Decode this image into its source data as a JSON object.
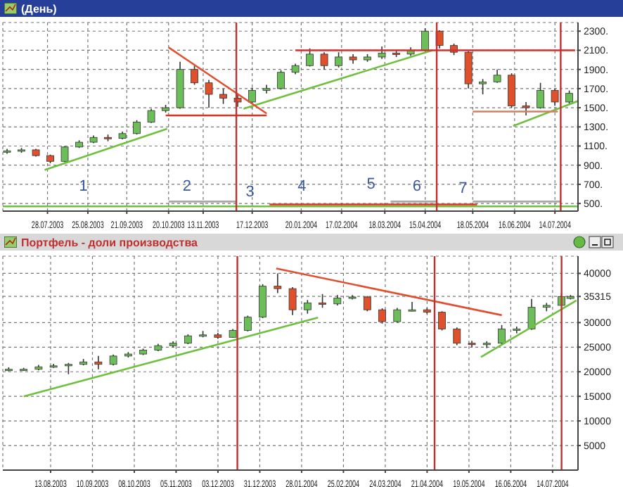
{
  "chart_data": [
    {
      "type": "candlestick",
      "title": "(День)",
      "x": [
        "2003-06-30",
        "2003-07-10",
        "2003-07-20",
        "2003-07-30",
        "2003-08-09",
        "2003-08-19",
        "2003-08-29",
        "2003-09-08",
        "2003-09-18",
        "2003-09-28",
        "2003-10-08",
        "2003-10-18",
        "2003-10-28",
        "2003-11-07",
        "2003-11-17",
        "2003-11-27",
        "2003-12-07",
        "2003-12-17",
        "2003-12-27",
        "2004-01-06",
        "2004-01-16",
        "2004-01-26",
        "2004-02-05",
        "2004-02-15",
        "2004-02-25",
        "2004-03-06",
        "2004-03-16",
        "2004-03-26",
        "2004-04-05",
        "2004-04-15",
        "2004-04-25",
        "2004-05-05",
        "2004-05-15",
        "2004-05-25",
        "2004-06-04",
        "2004-06-14",
        "2004-06-24",
        "2004-07-04",
        "2004-07-14",
        "2004-07-24"
      ],
      "ohlc": [
        [
          1040,
          1070,
          1020,
          1050
        ],
        [
          1050,
          1080,
          1030,
          1060
        ],
        [
          1060,
          1070,
          990,
          1000
        ],
        [
          1000,
          1010,
          920,
          940
        ],
        [
          940,
          1100,
          930,
          1090
        ],
        [
          1090,
          1160,
          1080,
          1140
        ],
        [
          1140,
          1210,
          1130,
          1190
        ],
        [
          1190,
          1220,
          1150,
          1180
        ],
        [
          1180,
          1250,
          1170,
          1230
        ],
        [
          1230,
          1370,
          1220,
          1350
        ],
        [
          1350,
          1490,
          1340,
          1470
        ],
        [
          1470,
          1530,
          1450,
          1500
        ],
        [
          1500,
          1980,
          1490,
          1900
        ],
        [
          1900,
          1940,
          1740,
          1760
        ],
        [
          1760,
          1790,
          1500,
          1640
        ],
        [
          1640,
          1700,
          1540,
          1600
        ],
        [
          1600,
          1640,
          1510,
          1560
        ],
        [
          1560,
          1710,
          1550,
          1680
        ],
        [
          1680,
          1740,
          1650,
          1700
        ],
        [
          1700,
          1890,
          1690,
          1870
        ],
        [
          1870,
          1960,
          1850,
          1940
        ],
        [
          1940,
          2120,
          1930,
          2060
        ],
        [
          2060,
          2080,
          1900,
          1940
        ],
        [
          1940,
          2080,
          1920,
          2030
        ],
        [
          2030,
          2060,
          1960,
          2000
        ],
        [
          2000,
          2060,
          1980,
          2030
        ],
        [
          2030,
          2140,
          2010,
          2070
        ],
        [
          2070,
          2100,
          2030,
          2060
        ],
        [
          2060,
          2130,
          2040,
          2100
        ],
        [
          2100,
          2330,
          2090,
          2300
        ],
        [
          2300,
          2310,
          2120,
          2150
        ],
        [
          2150,
          2170,
          2050,
          2080
        ],
        [
          2080,
          2090,
          1700,
          1750
        ],
        [
          1750,
          1800,
          1640,
          1770
        ],
        [
          1770,
          1900,
          1760,
          1840
        ],
        [
          1840,
          1860,
          1500,
          1520
        ],
        [
          1520,
          1560,
          1420,
          1500
        ],
        [
          1500,
          1760,
          1490,
          1680
        ],
        [
          1680,
          1700,
          1520,
          1560
        ],
        [
          1560,
          1680,
          1540,
          1650
        ]
      ],
      "xlim": [
        "2003-06-27",
        "2004-07-30"
      ],
      "ylim": [
        420,
        2390
      ],
      "xticks": [
        {
          "value": "2003-07-28",
          "label": "28.07.2003"
        },
        {
          "value": "2003-08-25",
          "label": "25.08.2003"
        },
        {
          "value": "2003-09-21",
          "label": "21.09.2003"
        },
        {
          "value": "2003-10-20",
          "label": "20.10.2003"
        },
        {
          "value": "2003-11-13",
          "label": "13.11.2003"
        },
        {
          "value": "2003-12-17",
          "label": "17.12.2003"
        },
        {
          "value": "2004-01-20",
          "label": "20.01.2004"
        },
        {
          "value": "2004-02-17",
          "label": "17.02.2004"
        },
        {
          "value": "2004-03-18",
          "label": "18.03.2004"
        },
        {
          "value": "2004-04-15",
          "label": "15.04.2004"
        },
        {
          "value": "2004-05-18",
          "label": "18.05.2004"
        },
        {
          "value": "2004-06-16",
          "label": "16.06.2004"
        },
        {
          "value": "2004-07-14",
          "label": "14.07.2004"
        }
      ],
      "yticks": [
        {
          "value": 500,
          "label": "500."
        },
        {
          "value": 700,
          "label": "700."
        },
        {
          "value": 900,
          "label": "900."
        },
        {
          "value": 1100,
          "label": "1100."
        },
        {
          "value": 1300,
          "label": "1300."
        },
        {
          "value": 1500,
          "label": "1500."
        },
        {
          "value": 1700,
          "label": "1700."
        },
        {
          "value": 1900,
          "label": "1900."
        },
        {
          "value": 2100,
          "label": "2100."
        },
        {
          "value": 2300,
          "label": "2300."
        }
      ],
      "grid": true,
      "series": [
        {
          "type": "line",
          "color": "#70c040",
          "x": [
            "2003-07-26",
            "2003-10-19"
          ],
          "values": [
            850,
            1280
          ]
        },
        {
          "type": "line",
          "color": "#70c040",
          "x": [
            "2003-12-11",
            "2004-04-20"
          ],
          "values": [
            1490,
            2100
          ]
        },
        {
          "type": "line",
          "color": "#70c040",
          "x": [
            "2004-06-15",
            "2004-07-30"
          ],
          "values": [
            1310,
            1570
          ]
        },
        {
          "type": "line",
          "color": "#e05030",
          "x": [
            "2003-10-20",
            "2003-12-27"
          ],
          "values": [
            2130,
            1440
          ]
        },
        {
          "type": "line",
          "color": "#e03020",
          "x": [
            "2003-10-18",
            "2003-12-27"
          ],
          "values": [
            1420,
            1420
          ]
        },
        {
          "type": "line",
          "color": "#d03030",
          "x": [
            "2004-01-16",
            "2004-07-28"
          ],
          "values": [
            2100,
            2100
          ]
        },
        {
          "type": "line",
          "color": "#d08060",
          "x": [
            "2004-05-18",
            "2004-07-16"
          ],
          "values": [
            1460,
            1460
          ]
        },
        {
          "type": "line",
          "color": "#70c040",
          "x": [
            "2003-06-27",
            "2004-07-30"
          ],
          "values": [
            470,
            470
          ]
        },
        {
          "type": "line",
          "color": "#a8a8a8",
          "x": [
            "2003-10-20",
            "2003-12-06"
          ],
          "values": [
            520,
            520
          ]
        },
        {
          "type": "line",
          "color": "#e03020",
          "x": [
            "2003-12-29",
            "2004-05-21"
          ],
          "values": [
            490,
            490
          ]
        },
        {
          "type": "line",
          "color": "#a8a8a8",
          "x": [
            "2004-03-22",
            "2004-04-23"
          ],
          "values": [
            520,
            520
          ]
        },
        {
          "type": "line",
          "color": "#a8a8a8",
          "x": [
            "2004-05-18",
            "2004-07-18"
          ],
          "values": [
            520,
            520
          ]
        }
      ],
      "ref_lines": [
        {
          "axis": "x",
          "value": "2003-12-06",
          "color": "#c03030"
        },
        {
          "axis": "x",
          "value": "2004-04-23",
          "color": "#c03030"
        },
        {
          "axis": "x",
          "value": "2004-07-18",
          "color": "#c03030"
        }
      ],
      "annotations": [
        "1",
        "2",
        "3",
        "4",
        "5",
        "6",
        "7"
      ]
    },
    {
      "type": "candlestick",
      "title": "Портфель - доли производства",
      "x": [
        "2003-07-16",
        "2003-07-26",
        "2003-08-05",
        "2003-08-15",
        "2003-08-25",
        "2003-09-04",
        "2003-09-14",
        "2003-09-24",
        "2003-10-04",
        "2003-10-14",
        "2003-10-24",
        "2003-11-03",
        "2003-11-13",
        "2003-11-23",
        "2003-12-03",
        "2003-12-13",
        "2003-12-23",
        "2004-01-02",
        "2004-01-12",
        "2004-01-22",
        "2004-02-01",
        "2004-02-11",
        "2004-02-21",
        "2004-03-02",
        "2004-03-12",
        "2004-03-22",
        "2004-04-01",
        "2004-04-11",
        "2004-04-21",
        "2004-05-01",
        "2004-05-11",
        "2004-05-21",
        "2004-05-31",
        "2004-06-10",
        "2004-06-20",
        "2004-06-30",
        "2004-07-10",
        "2004-07-20",
        "2004-07-26"
      ],
      "ohlc": [
        [
          20300,
          20900,
          20100,
          20500
        ],
        [
          20500,
          20800,
          20200,
          20500
        ],
        [
          20500,
          21400,
          20300,
          21000
        ],
        [
          21000,
          21600,
          20800,
          21200
        ],
        [
          21200,
          21800,
          19500,
          21500
        ],
        [
          21500,
          22600,
          21300,
          22000
        ],
        [
          22000,
          23200,
          20500,
          21500
        ],
        [
          21500,
          23500,
          21300,
          23200
        ],
        [
          23200,
          24000,
          22900,
          23600
        ],
        [
          23600,
          24700,
          23400,
          24400
        ],
        [
          24400,
          25700,
          24200,
          25300
        ],
        [
          25300,
          26200,
          25000,
          25800
        ],
        [
          25800,
          27600,
          25600,
          27300
        ],
        [
          27300,
          28300,
          27000,
          27500
        ],
        [
          27500,
          27900,
          26700,
          27000
        ],
        [
          27000,
          28700,
          26900,
          28400
        ],
        [
          28400,
          31400,
          28200,
          31100
        ],
        [
          31100,
          37800,
          30900,
          37400
        ],
        [
          37400,
          40000,
          36000,
          36900
        ],
        [
          36900,
          37200,
          31500,
          32600
        ],
        [
          32600,
          34600,
          31800,
          34000
        ],
        [
          34000,
          35800,
          33000,
          33800
        ],
        [
          33800,
          35600,
          33500,
          35000
        ],
        [
          35000,
          35600,
          34700,
          35200
        ],
        [
          35200,
          35400,
          32300,
          32600
        ],
        [
          32600,
          32900,
          29800,
          30200
        ],
        [
          30200,
          33000,
          30000,
          32600
        ],
        [
          32600,
          34200,
          32300,
          32600
        ],
        [
          32600,
          33000,
          31800,
          32100
        ],
        [
          32100,
          32300,
          28400,
          28700
        ],
        [
          28700,
          29000,
          25400,
          25800
        ],
        [
          25800,
          26300,
          25000,
          25500
        ],
        [
          25500,
          26200,
          24800,
          25800
        ],
        [
          25800,
          29500,
          25600,
          28700
        ],
        [
          28700,
          29200,
          27800,
          28700
        ],
        [
          28700,
          34800,
          28500,
          33100
        ],
        [
          33100,
          34000,
          32300,
          33500
        ],
        [
          33500,
          36000,
          33300,
          35300
        ],
        [
          34900,
          35600,
          34700,
          35315
        ]
      ],
      "xlim": [
        "2003-07-12",
        "2004-07-31"
      ],
      "ylim": [
        0,
        43500
      ],
      "xticks": [
        {
          "value": "2003-08-13",
          "label": "13.08.2003"
        },
        {
          "value": "2003-09-10",
          "label": "10.09.2003"
        },
        {
          "value": "2003-10-08",
          "label": "08.10.2003"
        },
        {
          "value": "2003-11-05",
          "label": "05.11.2003"
        },
        {
          "value": "2003-12-03",
          "label": "03.12.2003"
        },
        {
          "value": "2003-12-31",
          "label": "31.12.2003"
        },
        {
          "value": "2004-01-28",
          "label": "28.01.2004"
        },
        {
          "value": "2004-02-25",
          "label": "25.02.2004"
        },
        {
          "value": "2004-03-24",
          "label": "24.03.2004"
        },
        {
          "value": "2004-04-21",
          "label": "21.04.2004"
        },
        {
          "value": "2004-05-19",
          "label": "19.05.2004"
        },
        {
          "value": "2004-06-16",
          "label": "16.06.2004"
        },
        {
          "value": "2004-07-14",
          "label": "14.07.2004"
        }
      ],
      "yticks": [
        5000,
        10000,
        15000,
        20000,
        25000,
        30000,
        35315,
        40000
      ],
      "grid": true,
      "series": [
        {
          "type": "line",
          "color": "#70c040",
          "x": [
            "2003-07-26",
            "2004-02-08"
          ],
          "values": [
            15000,
            31000
          ]
        },
        {
          "type": "line",
          "color": "#70c040",
          "x": [
            "2004-05-27",
            "2004-07-30"
          ],
          "values": [
            23000,
            34500
          ]
        },
        {
          "type": "line",
          "color": "#e05030",
          "x": [
            "2004-01-11",
            "2004-06-10"
          ],
          "values": [
            41000,
            31500
          ]
        }
      ],
      "ref_lines": [
        {
          "axis": "x",
          "value": "2003-12-16",
          "color": "#c03030"
        },
        {
          "axis": "x",
          "value": "2004-04-26",
          "color": "#c03030"
        },
        {
          "axis": "x",
          "value": "2004-07-20",
          "color": "#c03030"
        }
      ]
    }
  ]
}
